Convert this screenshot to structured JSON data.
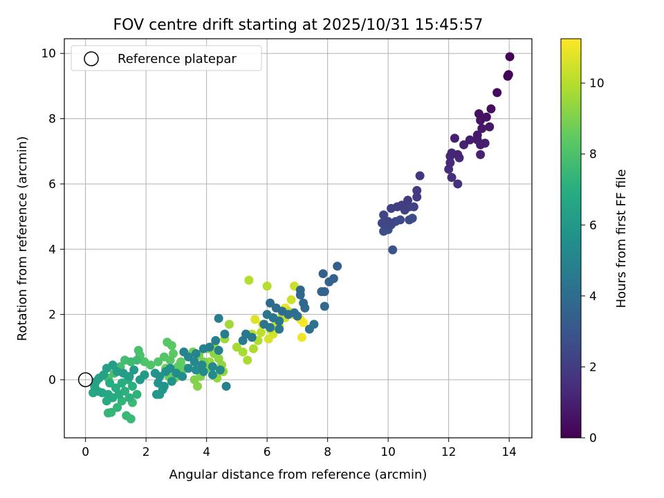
{
  "chart_data": {
    "type": "scatter",
    "title": "FOV centre drift starting at 2025/10/31 15:45:57",
    "xlabel": "Angular distance from reference (arcmin)",
    "ylabel": "Rotation from reference (arcmin)",
    "xlim": [
      -0.7,
      14.75
    ],
    "ylim": [
      -1.78,
      10.45
    ],
    "xticks": [
      "0",
      "2",
      "4",
      "6",
      "8",
      "10",
      "12",
      "14"
    ],
    "yticks": [
      "0",
      "2",
      "4",
      "6",
      "8",
      "10"
    ],
    "grid": true,
    "legend": {
      "position": "top-left",
      "entries": [
        "Reference platepar"
      ]
    },
    "reference_point": {
      "x": 0,
      "y": 0
    },
    "colorbar": {
      "label": "Hours from first FF file",
      "colormap": "viridis",
      "range": [
        0,
        11.25
      ],
      "ticks": [
        "0",
        "2",
        "4",
        "6",
        "8",
        "10"
      ]
    },
    "points": [
      [
        14.02,
        9.9,
        0.05
      ],
      [
        13.98,
        9.35,
        0.1
      ],
      [
        13.95,
        9.3,
        0.15
      ],
      [
        13.6,
        8.8,
        0.3
      ],
      [
        13.4,
        8.3,
        0.45
      ],
      [
        13.0,
        8.15,
        0.5
      ],
      [
        13.25,
        8.05,
        0.55
      ],
      [
        13.05,
        7.95,
        0.6
      ],
      [
        13.35,
        7.75,
        0.7
      ],
      [
        13.1,
        7.7,
        0.75
      ],
      [
        12.7,
        7.35,
        0.9
      ],
      [
        12.2,
        7.4,
        1.0
      ],
      [
        12.95,
        7.5,
        0.8
      ],
      [
        12.95,
        7.35,
        0.85
      ],
      [
        13.05,
        7.2,
        0.9
      ],
      [
        13.2,
        7.25,
        0.95
      ],
      [
        12.5,
        7.2,
        1.1
      ],
      [
        12.3,
        6.9,
        1.2
      ],
      [
        12.05,
        6.85,
        1.25
      ],
      [
        12.1,
        6.95,
        1.2
      ],
      [
        12.35,
        6.8,
        1.3
      ],
      [
        13.05,
        6.9,
        1.1
      ],
      [
        12.05,
        6.65,
        1.35
      ],
      [
        12.0,
        6.45,
        1.45
      ],
      [
        12.1,
        6.2,
        1.5
      ],
      [
        12.3,
        6.0,
        1.6
      ],
      [
        11.05,
        6.25,
        1.8
      ],
      [
        10.95,
        5.8,
        1.9
      ],
      [
        10.95,
        5.6,
        1.95
      ],
      [
        10.65,
        5.5,
        2.0
      ],
      [
        10.45,
        5.35,
        2.05
      ],
      [
        10.3,
        5.3,
        2.1
      ],
      [
        10.1,
        5.25,
        2.1
      ],
      [
        10.7,
        5.3,
        2.15
      ],
      [
        10.85,
        5.3,
        2.2
      ],
      [
        10.55,
        5.2,
        2.2
      ],
      [
        9.85,
        5.05,
        2.3
      ],
      [
        10.0,
        4.85,
        2.35
      ],
      [
        9.8,
        4.8,
        2.4
      ],
      [
        10.1,
        4.75,
        2.45
      ],
      [
        10.25,
        4.85,
        2.5
      ],
      [
        10.4,
        4.9,
        2.5
      ],
      [
        10.7,
        4.9,
        2.55
      ],
      [
        10.8,
        4.95,
        2.6
      ],
      [
        9.95,
        4.7,
        2.6
      ],
      [
        9.85,
        4.55,
        2.65
      ],
      [
        10.0,
        4.6,
        2.7
      ],
      [
        10.15,
        3.98,
        2.8
      ],
      [
        8.32,
        3.48,
        3.4
      ],
      [
        7.85,
        3.25,
        3.45
      ],
      [
        8.2,
        3.1,
        3.5
      ],
      [
        8.05,
        3.0,
        3.55
      ],
      [
        7.9,
        2.7,
        3.6
      ],
      [
        7.8,
        2.7,
        3.65
      ],
      [
        7.1,
        2.75,
        3.7
      ],
      [
        7.1,
        2.6,
        3.75
      ],
      [
        7.2,
        2.35,
        3.8
      ],
      [
        7.25,
        2.2,
        3.85
      ],
      [
        7.9,
        2.25,
        3.85
      ],
      [
        6.1,
        2.35,
        3.9
      ],
      [
        6.3,
        2.2,
        3.95
      ],
      [
        6.5,
        2.1,
        4.0
      ],
      [
        6.7,
        2.0,
        4.05
      ],
      [
        6.9,
        2.05,
        4.1
      ],
      [
        7.0,
        1.95,
        4.1
      ],
      [
        7.4,
        1.55,
        4.2
      ],
      [
        7.55,
        1.7,
        4.2
      ],
      [
        6.0,
        2.0,
        4.25
      ],
      [
        6.2,
        1.9,
        4.3
      ],
      [
        6.4,
        1.8,
        4.35
      ],
      [
        5.9,
        1.7,
        4.4
      ],
      [
        6.1,
        1.6,
        4.45
      ],
      [
        6.4,
        1.55,
        4.5
      ],
      [
        5.3,
        1.4,
        4.5
      ],
      [
        5.5,
        1.3,
        4.55
      ],
      [
        5.2,
        1.2,
        4.6
      ],
      [
        4.4,
        1.88,
        4.7
      ],
      [
        4.6,
        1.4,
        4.7
      ],
      [
        4.3,
        1.2,
        4.75
      ],
      [
        4.1,
        1.0,
        4.8
      ],
      [
        4.65,
        -0.2,
        4.85
      ],
      [
        4.4,
        0.9,
        4.9
      ],
      [
        3.9,
        0.95,
        5.0
      ],
      [
        3.65,
        0.8,
        5.05
      ],
      [
        3.25,
        0.85,
        5.1
      ],
      [
        3.4,
        0.7,
        5.15
      ],
      [
        3.6,
        0.55,
        5.2
      ],
      [
        3.85,
        0.45,
        5.2
      ],
      [
        4.2,
        0.4,
        5.25
      ],
      [
        4.45,
        0.3,
        5.3
      ],
      [
        4.2,
        0.15,
        5.35
      ],
      [
        3.9,
        0.25,
        5.35
      ],
      [
        3.65,
        0.3,
        5.4
      ],
      [
        3.4,
        0.35,
        5.45
      ],
      [
        3.2,
        0.1,
        5.5
      ],
      [
        3.0,
        0.2,
        5.5
      ],
      [
        2.8,
        0.35,
        5.55
      ],
      [
        2.65,
        0.25,
        5.6
      ],
      [
        2.45,
        0.1,
        5.65
      ],
      [
        2.3,
        0.2,
        5.7
      ],
      [
        2.4,
        -0.1,
        5.75
      ],
      [
        2.6,
        -0.2,
        5.8
      ],
      [
        2.85,
        -0.05,
        5.8
      ],
      [
        2.55,
        -0.3,
        5.85
      ],
      [
        2.35,
        -0.45,
        5.9
      ],
      [
        2.45,
        -0.45,
        5.95
      ],
      [
        1.8,
        0.0,
        6.0
      ],
      [
        1.95,
        0.15,
        6.05
      ],
      [
        1.6,
        0.3,
        6.1
      ],
      [
        1.45,
        0.1,
        6.15
      ],
      [
        1.25,
        0.2,
        6.2
      ],
      [
        1.05,
        0.25,
        6.25
      ],
      [
        0.9,
        0.45,
        6.3
      ],
      [
        0.7,
        0.35,
        6.35
      ],
      [
        0.6,
        0.15,
        6.4
      ],
      [
        0.45,
        0.05,
        6.45
      ],
      [
        0.35,
        -0.05,
        6.5
      ],
      [
        0.3,
        -0.2,
        6.55
      ],
      [
        0.4,
        -0.35,
        6.6
      ],
      [
        0.25,
        -0.4,
        6.65
      ],
      [
        0.55,
        -0.4,
        6.7
      ],
      [
        0.75,
        -0.45,
        6.75
      ],
      [
        0.7,
        -0.65,
        6.8
      ],
      [
        0.9,
        -0.55,
        6.85
      ],
      [
        1.1,
        -0.45,
        6.9
      ],
      [
        1.0,
        -0.25,
        6.95
      ],
      [
        0.8,
        -0.1,
        7.0
      ],
      [
        1.2,
        -0.1,
        7.0
      ],
      [
        1.4,
        0.0,
        7.05
      ],
      [
        1.55,
        -0.2,
        7.1
      ],
      [
        1.3,
        -0.35,
        7.15
      ],
      [
        1.45,
        -0.55,
        7.2
      ],
      [
        1.7,
        -0.45,
        7.25
      ],
      [
        1.2,
        -0.65,
        7.3
      ],
      [
        1.05,
        -0.85,
        7.35
      ],
      [
        0.85,
        -1.0,
        7.4
      ],
      [
        0.75,
        -1.02,
        7.45
      ],
      [
        1.35,
        -1.1,
        7.5
      ],
      [
        1.5,
        -1.2,
        7.55
      ],
      [
        1.55,
        -0.7,
        7.6
      ],
      [
        1.7,
        0.6,
        7.65
      ],
      [
        1.5,
        0.55,
        7.7
      ],
      [
        1.3,
        0.6,
        7.75
      ],
      [
        1.15,
        0.4,
        7.8
      ],
      [
        0.95,
        0.2,
        7.85
      ],
      [
        0.75,
        0.05,
        7.9
      ],
      [
        1.75,
        0.9,
        7.95
      ],
      [
        1.8,
        0.75,
        8.0
      ],
      [
        1.95,
        0.55,
        8.05
      ],
      [
        2.15,
        0.45,
        8.1
      ],
      [
        2.4,
        0.55,
        8.15
      ],
      [
        2.6,
        0.7,
        8.2
      ],
      [
        2.8,
        0.6,
        8.25
      ],
      [
        2.7,
        1.15,
        8.3
      ],
      [
        2.85,
        1.05,
        8.35
      ],
      [
        2.9,
        0.8,
        8.4
      ],
      [
        3.05,
        0.4,
        8.45
      ],
      [
        3.15,
        0.55,
        8.5
      ],
      [
        3.3,
        0.35,
        8.55
      ],
      [
        3.1,
        0.2,
        8.6
      ],
      [
        2.95,
        0.05,
        8.65
      ],
      [
        2.75,
        0.1,
        8.7
      ],
      [
        2.65,
        0.35,
        8.75
      ],
      [
        3.4,
        0.7,
        8.8
      ],
      [
        3.55,
        0.85,
        8.85
      ],
      [
        3.75,
        0.75,
        8.9
      ],
      [
        3.9,
        0.55,
        8.95
      ],
      [
        4.0,
        0.35,
        9.0
      ],
      [
        3.8,
        0.1,
        9.05
      ],
      [
        3.6,
        0.0,
        9.1
      ],
      [
        3.7,
        -0.2,
        9.15
      ],
      [
        4.05,
        0.95,
        9.2
      ],
      [
        4.25,
        0.8,
        9.25
      ],
      [
        4.4,
        0.65,
        9.3
      ],
      [
        4.5,
        0.45,
        9.35
      ],
      [
        4.55,
        0.25,
        9.4
      ],
      [
        4.35,
        0.05,
        9.45
      ],
      [
        4.1,
        0.55,
        9.5
      ],
      [
        4.25,
        1.05,
        9.55
      ],
      [
        4.6,
        1.25,
        9.6
      ],
      [
        4.75,
        1.7,
        9.65
      ],
      [
        5.0,
        1.0,
        9.7
      ],
      [
        5.2,
        0.85,
        9.75
      ],
      [
        5.35,
        0.6,
        9.8
      ],
      [
        5.55,
        0.95,
        9.85
      ],
      [
        5.7,
        1.2,
        9.9
      ],
      [
        5.4,
        3.05,
        9.95
      ],
      [
        6.0,
        2.87,
        10.0
      ],
      [
        5.5,
        1.4,
        10.05
      ],
      [
        5.8,
        1.45,
        10.1
      ],
      [
        6.1,
        1.55,
        10.15
      ],
      [
        6.3,
        1.75,
        10.2
      ],
      [
        6.5,
        1.95,
        10.25
      ],
      [
        6.7,
        2.1,
        10.3
      ],
      [
        6.9,
        2.87,
        10.35
      ],
      [
        6.8,
        2.45,
        10.4
      ],
      [
        6.6,
        1.9,
        10.45
      ],
      [
        6.4,
        1.65,
        10.5
      ],
      [
        6.2,
        1.4,
        10.55
      ],
      [
        6.05,
        1.25,
        10.6
      ],
      [
        5.85,
        1.7,
        10.65
      ],
      [
        5.6,
        1.85,
        10.7
      ],
      [
        6.0,
        2.0,
        10.75
      ],
      [
        6.85,
        2.0,
        10.8
      ],
      [
        7.0,
        1.95,
        10.85
      ],
      [
        6.6,
        2.2,
        10.9
      ],
      [
        7.15,
        1.3,
        11.0
      ],
      [
        7.1,
        1.85,
        11.1
      ],
      [
        7.2,
        1.75,
        11.2
      ]
    ]
  }
}
